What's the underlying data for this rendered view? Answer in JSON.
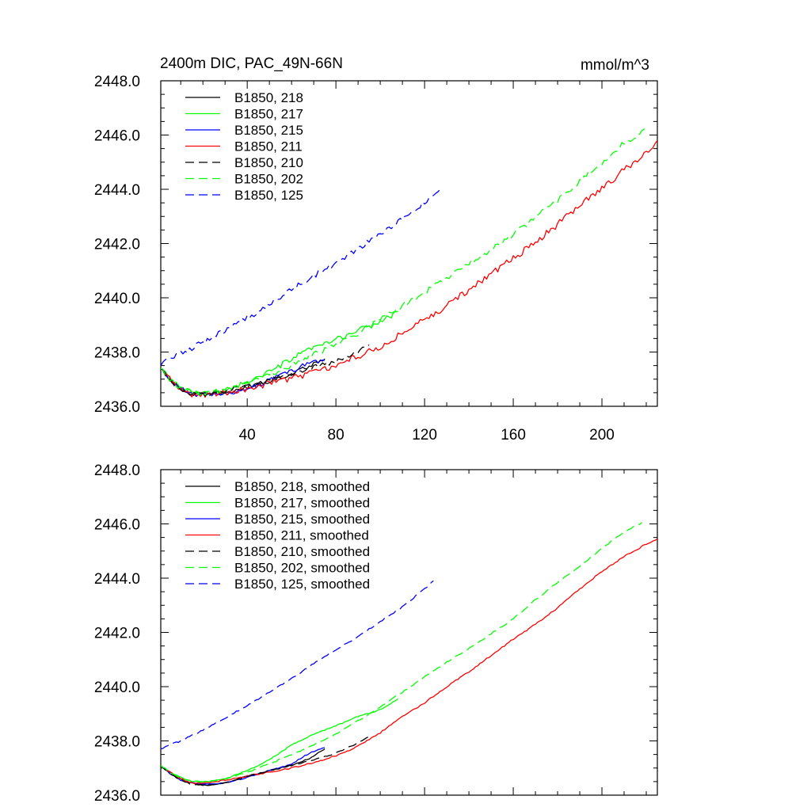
{
  "figure": {
    "title_left": "2400m DIC, PAC_49N-66N",
    "title_right": "mmol/m^3"
  },
  "chart_data": [
    {
      "type": "line",
      "panel": "raw",
      "title": "2400m DIC, PAC_49N-66N",
      "units": "mmol/m^3",
      "xlim": [
        1,
        225
      ],
      "ylim": [
        2436.0,
        2448.0
      ],
      "x_ticks": [
        40,
        80,
        120,
        160,
        200
      ],
      "x_tick_labels": [
        "40",
        "80",
        "120",
        "160",
        "200"
      ],
      "y_ticks": [
        2436.0,
        2438.0,
        2440.0,
        2442.0,
        2444.0,
        2446.0,
        2448.0
      ],
      "y_tick_labels": [
        "2436.0",
        "2438.0",
        "2440.0",
        "2442.0",
        "2444.0",
        "2446.0",
        "2448.0"
      ],
      "legend_position": "top-left",
      "series": [
        {
          "name": "B1850, 218",
          "color": "#000000",
          "dash": "solid",
          "noise": 0.09,
          "knots": [
            [
              1,
              2437.4
            ],
            [
              5,
              2437.0
            ],
            [
              10,
              2436.6
            ],
            [
              15,
              2436.45
            ],
            [
              22,
              2436.45
            ],
            [
              30,
              2436.5
            ],
            [
              40,
              2436.7
            ],
            [
              50,
              2436.95
            ],
            [
              60,
              2437.2
            ],
            [
              68,
              2437.5
            ],
            [
              75,
              2437.75
            ]
          ]
        },
        {
          "name": "B1850, 217",
          "color": "#00ff00",
          "dash": "solid",
          "noise": 0.1,
          "knots": [
            [
              1,
              2437.4
            ],
            [
              5,
              2437.0
            ],
            [
              10,
              2436.7
            ],
            [
              15,
              2436.5
            ],
            [
              22,
              2436.45
            ],
            [
              30,
              2436.6
            ],
            [
              40,
              2436.9
            ],
            [
              50,
              2437.25
            ],
            [
              60,
              2437.75
            ],
            [
              70,
              2438.15
            ],
            [
              80,
              2438.45
            ],
            [
              90,
              2438.8
            ],
            [
              100,
              2439.1
            ],
            [
              108,
              2439.5
            ]
          ]
        },
        {
          "name": "B1850, 215",
          "color": "#0000ff",
          "dash": "solid",
          "noise": 0.09,
          "knots": [
            [
              1,
              2437.4
            ],
            [
              5,
              2437.0
            ],
            [
              10,
              2436.65
            ],
            [
              15,
              2436.45
            ],
            [
              22,
              2436.4
            ],
            [
              30,
              2436.45
            ],
            [
              40,
              2436.65
            ],
            [
              50,
              2436.95
            ],
            [
              60,
              2437.3
            ],
            [
              68,
              2437.6
            ],
            [
              75,
              2437.7
            ]
          ]
        },
        {
          "name": "B1850, 211",
          "color": "#ff0000",
          "dash": "solid",
          "noise": 0.12,
          "knots": [
            [
              1,
              2437.4
            ],
            [
              5,
              2437.0
            ],
            [
              10,
              2436.6
            ],
            [
              15,
              2436.45
            ],
            [
              22,
              2436.45
            ],
            [
              30,
              2436.5
            ],
            [
              40,
              2436.65
            ],
            [
              50,
              2436.85
            ],
            [
              60,
              2437.05
            ],
            [
              70,
              2437.25
            ],
            [
              80,
              2437.5
            ],
            [
              90,
              2437.85
            ],
            [
              100,
              2438.2
            ],
            [
              110,
              2438.7
            ],
            [
              120,
              2439.2
            ],
            [
              130,
              2439.7
            ],
            [
              140,
              2440.3
            ],
            [
              150,
              2440.9
            ],
            [
              160,
              2441.45
            ],
            [
              170,
              2442.05
            ],
            [
              180,
              2442.7
            ],
            [
              190,
              2443.4
            ],
            [
              200,
              2444.05
            ],
            [
              210,
              2444.7
            ],
            [
              220,
              2445.3
            ],
            [
              225,
              2445.8
            ]
          ]
        },
        {
          "name": "B1850, 210",
          "color": "#000000",
          "dash": "dashed",
          "noise": 0.08,
          "knots": [
            [
              1,
              2437.4
            ],
            [
              5,
              2437.0
            ],
            [
              10,
              2436.65
            ],
            [
              15,
              2436.45
            ],
            [
              22,
              2436.45
            ],
            [
              30,
              2436.55
            ],
            [
              40,
              2436.75
            ],
            [
              50,
              2436.95
            ],
            [
              60,
              2437.2
            ],
            [
              70,
              2437.45
            ],
            [
              80,
              2437.65
            ],
            [
              88,
              2437.95
            ],
            [
              95,
              2438.25
            ]
          ]
        },
        {
          "name": "B1850, 202",
          "color": "#00ff00",
          "dash": "dashed",
          "noise": 0.1,
          "knots": [
            [
              1,
              2437.4
            ],
            [
              5,
              2437.0
            ],
            [
              10,
              2436.7
            ],
            [
              15,
              2436.5
            ],
            [
              22,
              2436.5
            ],
            [
              30,
              2436.6
            ],
            [
              40,
              2436.85
            ],
            [
              50,
              2437.15
            ],
            [
              60,
              2437.5
            ],
            [
              70,
              2437.9
            ],
            [
              80,
              2438.25
            ],
            [
              90,
              2438.7
            ],
            [
              100,
              2439.2
            ],
            [
              110,
              2439.7
            ],
            [
              120,
              2440.2
            ],
            [
              130,
              2440.75
            ],
            [
              140,
              2441.25
            ],
            [
              150,
              2441.8
            ],
            [
              160,
              2442.35
            ],
            [
              170,
              2442.95
            ],
            [
              180,
              2443.6
            ],
            [
              190,
              2444.3
            ],
            [
              200,
              2445.0
            ],
            [
              210,
              2445.7
            ],
            [
              220,
              2446.2
            ]
          ]
        },
        {
          "name": "B1850, 125",
          "color": "#0000ff",
          "dash": "dashed",
          "noise": 0.1,
          "knots": [
            [
              1,
              2437.5
            ],
            [
              5,
              2437.75
            ],
            [
              10,
              2437.95
            ],
            [
              20,
              2438.35
            ],
            [
              30,
              2438.8
            ],
            [
              40,
              2439.25
            ],
            [
              50,
              2439.75
            ],
            [
              60,
              2440.3
            ],
            [
              70,
              2440.8
            ],
            [
              80,
              2441.3
            ],
            [
              90,
              2441.8
            ],
            [
              100,
              2442.35
            ],
            [
              110,
              2442.9
            ],
            [
              120,
              2443.5
            ],
            [
              127,
              2444.0
            ]
          ]
        }
      ]
    },
    {
      "type": "line",
      "panel": "smoothed",
      "xlim": [
        1,
        225
      ],
      "ylim": [
        2436.0,
        2448.0
      ],
      "y_ticks": [
        2436.0,
        2438.0,
        2440.0,
        2442.0,
        2444.0,
        2446.0,
        2448.0
      ],
      "y_tick_labels": [
        "2436.0",
        "2438.0",
        "2440.0",
        "2442.0",
        "2444.0",
        "2446.0",
        "2448.0"
      ],
      "legend_position": "top-left",
      "series": [
        {
          "name": "B1850, 218, smoothed",
          "color": "#000000",
          "dash": "solid",
          "noise": 0.02,
          "knots": [
            [
              1,
              2437.1
            ],
            [
              5,
              2436.85
            ],
            [
              10,
              2436.6
            ],
            [
              15,
              2436.45
            ],
            [
              22,
              2436.35
            ],
            [
              30,
              2436.45
            ],
            [
              40,
              2436.7
            ],
            [
              50,
              2436.9
            ],
            [
              60,
              2437.1
            ],
            [
              68,
              2437.35
            ],
            [
              75,
              2437.7
            ]
          ]
        },
        {
          "name": "B1850, 217, smoothed",
          "color": "#00ff00",
          "dash": "solid",
          "noise": 0.02,
          "knots": [
            [
              1,
              2437.1
            ],
            [
              5,
              2436.85
            ],
            [
              10,
              2436.65
            ],
            [
              15,
              2436.5
            ],
            [
              22,
              2436.5
            ],
            [
              30,
              2436.6
            ],
            [
              40,
              2436.9
            ],
            [
              50,
              2437.3
            ],
            [
              60,
              2437.85
            ],
            [
              70,
              2438.25
            ],
            [
              80,
              2438.55
            ],
            [
              90,
              2438.9
            ],
            [
              100,
              2439.15
            ],
            [
              108,
              2439.55
            ]
          ]
        },
        {
          "name": "B1850, 215, smoothed",
          "color": "#0000ff",
          "dash": "solid",
          "noise": 0.02,
          "knots": [
            [
              1,
              2437.1
            ],
            [
              5,
              2436.8
            ],
            [
              10,
              2436.55
            ],
            [
              15,
              2436.45
            ],
            [
              22,
              2436.4
            ],
            [
              30,
              2436.45
            ],
            [
              40,
              2436.65
            ],
            [
              50,
              2436.9
            ],
            [
              60,
              2437.15
            ],
            [
              68,
              2437.55
            ],
            [
              75,
              2437.75
            ]
          ]
        },
        {
          "name": "B1850, 211, smoothed",
          "color": "#ff0000",
          "dash": "solid",
          "noise": 0.025,
          "knots": [
            [
              1,
              2437.1
            ],
            [
              5,
              2436.85
            ],
            [
              10,
              2436.6
            ],
            [
              15,
              2436.45
            ],
            [
              22,
              2436.45
            ],
            [
              30,
              2436.55
            ],
            [
              40,
              2436.7
            ],
            [
              50,
              2436.85
            ],
            [
              60,
              2437.0
            ],
            [
              70,
              2437.2
            ],
            [
              80,
              2437.45
            ],
            [
              90,
              2437.8
            ],
            [
              100,
              2438.3
            ],
            [
              110,
              2438.9
            ],
            [
              120,
              2439.4
            ],
            [
              130,
              2440.0
            ],
            [
              140,
              2440.55
            ],
            [
              150,
              2441.15
            ],
            [
              160,
              2441.75
            ],
            [
              170,
              2442.3
            ],
            [
              180,
              2442.9
            ],
            [
              190,
              2443.6
            ],
            [
              200,
              2444.25
            ],
            [
              210,
              2444.8
            ],
            [
              220,
              2445.25
            ],
            [
              225,
              2445.45
            ]
          ]
        },
        {
          "name": "B1850, 210, smoothed",
          "color": "#000000",
          "dash": "dashed",
          "noise": 0.02,
          "knots": [
            [
              1,
              2437.1
            ],
            [
              5,
              2436.8
            ],
            [
              10,
              2436.55
            ],
            [
              15,
              2436.4
            ],
            [
              22,
              2436.35
            ],
            [
              30,
              2436.45
            ],
            [
              40,
              2436.7
            ],
            [
              50,
              2436.9
            ],
            [
              60,
              2437.1
            ],
            [
              70,
              2437.3
            ],
            [
              80,
              2437.55
            ],
            [
              88,
              2437.85
            ],
            [
              95,
              2438.15
            ]
          ]
        },
        {
          "name": "B1850, 202, smoothed",
          "color": "#00ff00",
          "dash": "dashed",
          "noise": 0.025,
          "knots": [
            [
              1,
              2437.1
            ],
            [
              5,
              2436.85
            ],
            [
              10,
              2436.65
            ],
            [
              15,
              2436.5
            ],
            [
              22,
              2436.5
            ],
            [
              30,
              2436.6
            ],
            [
              40,
              2436.85
            ],
            [
              50,
              2437.15
            ],
            [
              60,
              2437.5
            ],
            [
              70,
              2437.85
            ],
            [
              80,
              2438.25
            ],
            [
              90,
              2438.75
            ],
            [
              100,
              2439.25
            ],
            [
              110,
              2439.8
            ],
            [
              120,
              2440.35
            ],
            [
              130,
              2440.9
            ],
            [
              140,
              2441.4
            ],
            [
              150,
              2441.95
            ],
            [
              160,
              2442.5
            ],
            [
              170,
              2443.2
            ],
            [
              180,
              2443.85
            ],
            [
              190,
              2444.45
            ],
            [
              200,
              2445.1
            ],
            [
              210,
              2445.7
            ],
            [
              218,
              2446.05
            ]
          ]
        },
        {
          "name": "B1850, 125, smoothed",
          "color": "#0000ff",
          "dash": "dashed",
          "noise": 0.025,
          "knots": [
            [
              1,
              2437.7
            ],
            [
              5,
              2437.85
            ],
            [
              10,
              2438.0
            ],
            [
              20,
              2438.4
            ],
            [
              30,
              2438.85
            ],
            [
              40,
              2439.3
            ],
            [
              50,
              2439.8
            ],
            [
              60,
              2440.3
            ],
            [
              70,
              2440.85
            ],
            [
              80,
              2441.35
            ],
            [
              90,
              2441.85
            ],
            [
              100,
              2442.4
            ],
            [
              110,
              2442.95
            ],
            [
              120,
              2443.6
            ],
            [
              124,
              2443.9
            ]
          ]
        }
      ]
    }
  ]
}
